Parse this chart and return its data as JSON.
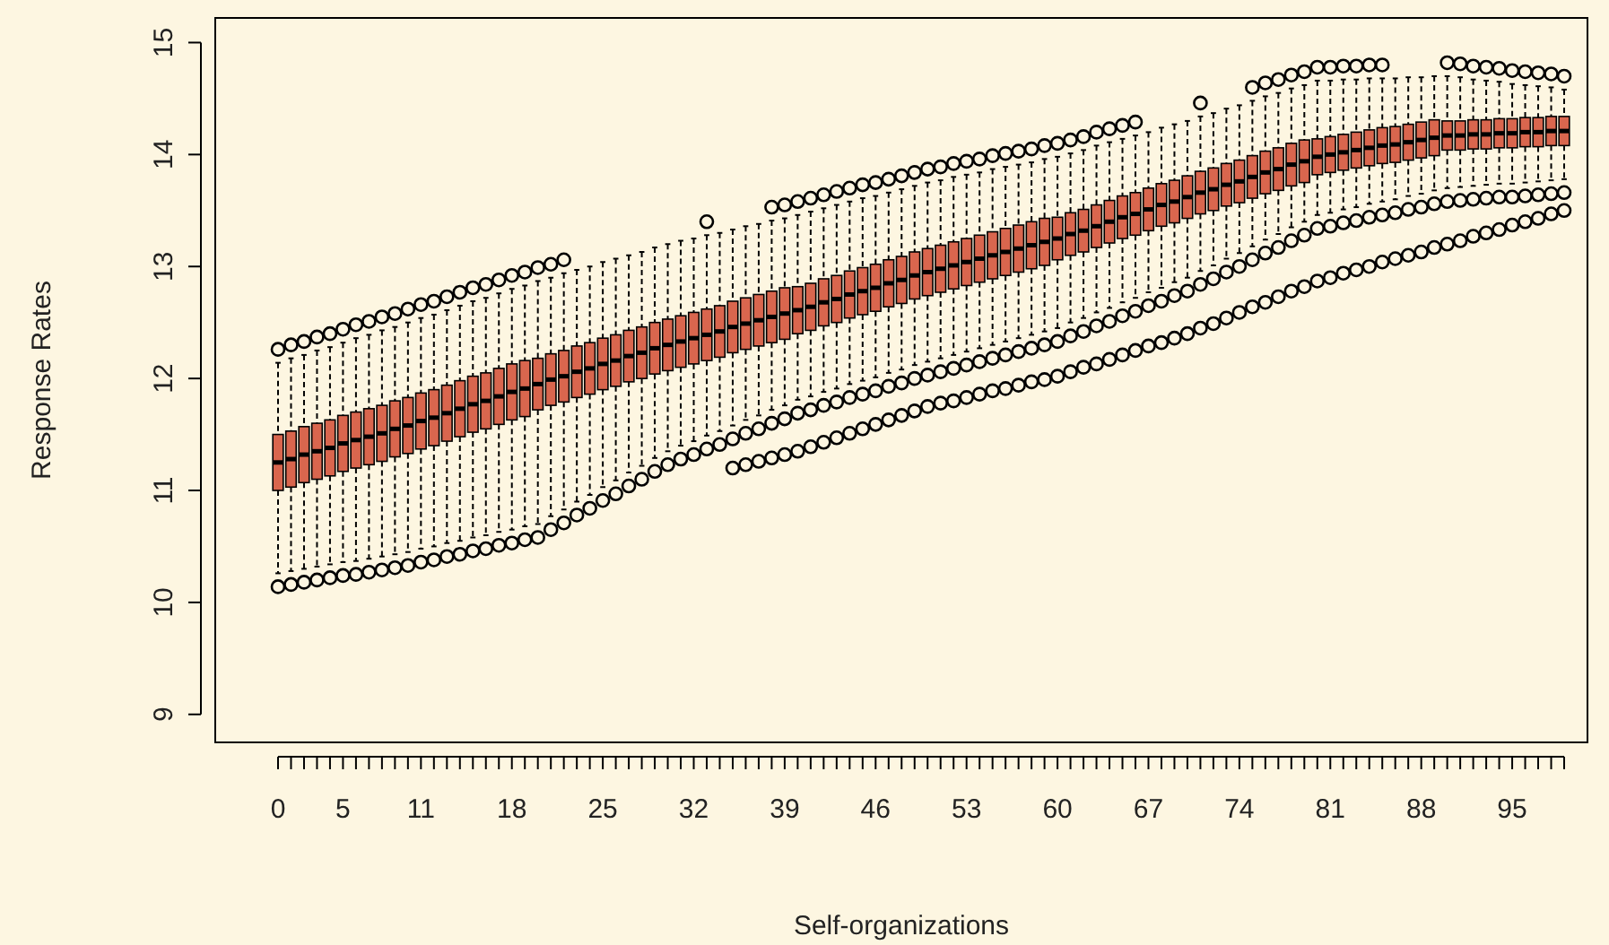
{
  "chart_data": {
    "type": "box",
    "xlabel": "Self-organizations",
    "ylabel": "Response Rates",
    "color": "#d9664e",
    "ylim": [
      8.75,
      15.22
    ],
    "yticks": [
      9,
      10,
      11,
      12,
      13,
      14,
      15
    ],
    "grid": false,
    "categories": [
      "0",
      null,
      null,
      null,
      null,
      "5",
      null,
      null,
      null,
      null,
      null,
      "11",
      null,
      null,
      null,
      null,
      null,
      null,
      "18",
      null,
      null,
      null,
      null,
      null,
      null,
      "25",
      null,
      null,
      null,
      null,
      null,
      null,
      "32",
      null,
      null,
      null,
      null,
      null,
      null,
      "39",
      null,
      null,
      null,
      null,
      null,
      null,
      "46",
      null,
      null,
      null,
      null,
      null,
      null,
      "53",
      null,
      null,
      null,
      null,
      null,
      null,
      "60",
      null,
      null,
      null,
      null,
      null,
      null,
      "67",
      null,
      null,
      null,
      null,
      null,
      null,
      "74",
      null,
      null,
      null,
      null,
      null,
      null,
      "81",
      null,
      null,
      null,
      null,
      null,
      null,
      "88",
      null,
      null,
      null,
      null,
      null,
      null,
      "95",
      null,
      null,
      null,
      null
    ],
    "boxes": [
      {
        "low": 10.26,
        "q1": 11.0,
        "median": 11.25,
        "q3": 11.5,
        "high": 12.14,
        "outliers": [
          10.14,
          12.26
        ]
      },
      {
        "low": 10.28,
        "q1": 11.03,
        "median": 11.28,
        "q3": 11.53,
        "high": 12.18,
        "outliers": [
          10.16,
          12.3
        ]
      },
      {
        "low": 10.3,
        "q1": 11.07,
        "median": 11.32,
        "q3": 11.57,
        "high": 12.21,
        "outliers": [
          10.18,
          12.33
        ]
      },
      {
        "low": 10.32,
        "q1": 11.1,
        "median": 11.35,
        "q3": 11.6,
        "high": 12.25,
        "outliers": [
          10.2,
          12.37
        ]
      },
      {
        "low": 10.34,
        "q1": 11.13,
        "median": 11.38,
        "q3": 11.63,
        "high": 12.28,
        "outliers": [
          10.22,
          12.4
        ]
      },
      {
        "low": 10.36,
        "q1": 11.17,
        "median": 11.42,
        "q3": 11.67,
        "high": 12.32,
        "outliers": [
          10.24,
          12.44
        ]
      },
      {
        "low": 10.37,
        "q1": 11.2,
        "median": 11.45,
        "q3": 11.7,
        "high": 12.36,
        "outliers": [
          10.25,
          12.48
        ]
      },
      {
        "low": 10.39,
        "q1": 11.23,
        "median": 11.48,
        "q3": 11.73,
        "high": 12.39,
        "outliers": [
          10.27,
          12.51
        ]
      },
      {
        "low": 10.41,
        "q1": 11.26,
        "median": 11.51,
        "q3": 11.76,
        "high": 12.43,
        "outliers": [
          10.29,
          12.55
        ]
      },
      {
        "low": 10.43,
        "q1": 11.3,
        "median": 11.55,
        "q3": 11.8,
        "high": 12.46,
        "outliers": [
          10.31,
          12.58
        ]
      },
      {
        "low": 10.45,
        "q1": 11.33,
        "median": 11.58,
        "q3": 11.83,
        "high": 12.5,
        "outliers": [
          10.33,
          12.62
        ]
      },
      {
        "low": 10.48,
        "q1": 11.37,
        "median": 11.62,
        "q3": 11.87,
        "high": 12.54,
        "outliers": [
          10.36,
          12.66
        ]
      },
      {
        "low": 10.5,
        "q1": 11.4,
        "median": 11.65,
        "q3": 11.9,
        "high": 12.57,
        "outliers": [
          10.38,
          12.69
        ]
      },
      {
        "low": 10.53,
        "q1": 11.44,
        "median": 11.69,
        "q3": 11.94,
        "high": 12.61,
        "outliers": [
          10.41,
          12.73
        ]
      },
      {
        "low": 10.55,
        "q1": 11.48,
        "median": 11.73,
        "q3": 11.98,
        "high": 12.65,
        "outliers": [
          10.43,
          12.77
        ]
      },
      {
        "low": 10.58,
        "q1": 11.52,
        "median": 11.77,
        "q3": 12.02,
        "high": 12.69,
        "outliers": [
          10.46,
          12.81
        ]
      },
      {
        "low": 10.6,
        "q1": 11.55,
        "median": 11.8,
        "q3": 12.05,
        "high": 12.72,
        "outliers": [
          10.48,
          12.84
        ]
      },
      {
        "low": 10.63,
        "q1": 11.59,
        "median": 11.84,
        "q3": 12.09,
        "high": 12.76,
        "outliers": [
          10.51,
          12.88
        ]
      },
      {
        "low": 10.65,
        "q1": 11.63,
        "median": 11.88,
        "q3": 12.13,
        "high": 12.8,
        "outliers": [
          10.53,
          12.92
        ]
      },
      {
        "low": 10.68,
        "q1": 11.66,
        "median": 11.91,
        "q3": 12.16,
        "high": 12.83,
        "outliers": [
          10.56,
          12.95
        ]
      },
      {
        "low": 10.7,
        "q1": 11.72,
        "median": 11.95,
        "q3": 12.18,
        "high": 12.87,
        "outliers": [
          10.58,
          12.99
        ]
      },
      {
        "low": 10.77,
        "q1": 11.76,
        "median": 11.99,
        "q3": 12.22,
        "high": 12.9,
        "outliers": [
          10.65,
          13.02
        ]
      },
      {
        "low": 10.83,
        "q1": 11.79,
        "median": 12.02,
        "q3": 12.25,
        "high": 12.94,
        "outliers": [
          10.71,
          13.06
        ]
      },
      {
        "low": 10.9,
        "q1": 11.83,
        "median": 12.06,
        "q3": 12.29,
        "high": 12.97,
        "outliers": [
          10.78
        ]
      },
      {
        "low": 10.96,
        "q1": 11.86,
        "median": 12.09,
        "q3": 12.32,
        "high": 13.0,
        "outliers": [
          10.84
        ]
      },
      {
        "low": 11.03,
        "q1": 11.9,
        "median": 12.13,
        "q3": 12.36,
        "high": 13.04,
        "outliers": [
          10.91
        ]
      },
      {
        "low": 11.09,
        "q1": 11.93,
        "median": 12.16,
        "q3": 12.39,
        "high": 13.07,
        "outliers": [
          10.97
        ]
      },
      {
        "low": 11.16,
        "q1": 11.97,
        "median": 12.2,
        "q3": 12.43,
        "high": 13.1,
        "outliers": [
          11.04
        ]
      },
      {
        "low": 11.22,
        "q1": 12.0,
        "median": 12.23,
        "q3": 12.46,
        "high": 13.13,
        "outliers": [
          11.1
        ]
      },
      {
        "low": 11.29,
        "q1": 12.04,
        "median": 12.27,
        "q3": 12.5,
        "high": 13.17,
        "outliers": [
          11.17
        ]
      },
      {
        "low": 11.35,
        "q1": 12.07,
        "median": 12.3,
        "q3": 12.53,
        "high": 13.2,
        "outliers": [
          11.23
        ]
      },
      {
        "low": 11.4,
        "q1": 12.1,
        "median": 12.33,
        "q3": 12.56,
        "high": 13.23,
        "outliers": [
          11.28
        ]
      },
      {
        "low": 11.44,
        "q1": 12.13,
        "median": 12.36,
        "q3": 12.59,
        "high": 13.25,
        "outliers": [
          11.32
        ]
      },
      {
        "low": 11.49,
        "q1": 12.16,
        "median": 12.39,
        "q3": 12.62,
        "high": 13.28,
        "outliers": [
          11.37,
          13.4
        ]
      },
      {
        "low": 11.53,
        "q1": 12.19,
        "median": 12.42,
        "q3": 12.65,
        "high": 13.3,
        "outliers": [
          11.41
        ]
      },
      {
        "low": 11.58,
        "q1": 12.23,
        "median": 12.46,
        "q3": 12.69,
        "high": 13.33,
        "outliers": [
          11.2,
          11.46
        ]
      },
      {
        "low": 11.63,
        "q1": 12.26,
        "median": 12.49,
        "q3": 12.72,
        "high": 13.36,
        "outliers": [
          11.23,
          11.51
        ]
      },
      {
        "low": 11.67,
        "q1": 12.29,
        "median": 12.52,
        "q3": 12.75,
        "high": 13.38,
        "outliers": [
          11.26,
          11.55
        ]
      },
      {
        "low": 11.72,
        "q1": 12.32,
        "median": 12.55,
        "q3": 12.78,
        "high": 13.41,
        "outliers": [
          11.29,
          11.6,
          13.53
        ]
      },
      {
        "low": 11.76,
        "q1": 12.35,
        "median": 12.58,
        "q3": 12.81,
        "high": 13.43,
        "outliers": [
          11.32,
          11.64,
          13.55
        ]
      },
      {
        "low": 11.81,
        "q1": 12.4,
        "median": 12.61,
        "q3": 12.82,
        "high": 13.46,
        "outliers": [
          11.35,
          11.69,
          13.58
        ]
      },
      {
        "low": 11.84,
        "q1": 12.43,
        "median": 12.64,
        "q3": 12.85,
        "high": 13.49,
        "outliers": [
          11.39,
          11.72,
          13.61
        ]
      },
      {
        "low": 11.88,
        "q1": 12.47,
        "median": 12.68,
        "q3": 12.89,
        "high": 13.52,
        "outliers": [
          11.43,
          11.76,
          13.64
        ]
      },
      {
        "low": 11.91,
        "q1": 12.5,
        "median": 12.71,
        "q3": 12.92,
        "high": 13.55,
        "outliers": [
          11.47,
          11.79,
          13.67
        ]
      },
      {
        "low": 11.95,
        "q1": 12.54,
        "median": 12.75,
        "q3": 12.96,
        "high": 13.58,
        "outliers": [
          11.51,
          11.83,
          13.7
        ]
      },
      {
        "low": 11.98,
        "q1": 12.57,
        "median": 12.78,
        "q3": 12.99,
        "high": 13.61,
        "outliers": [
          11.55,
          11.86,
          13.73
        ]
      },
      {
        "low": 12.01,
        "q1": 12.6,
        "median": 12.81,
        "q3": 13.02,
        "high": 13.63,
        "outliers": [
          11.59,
          11.89,
          13.75
        ]
      },
      {
        "low": 12.05,
        "q1": 12.64,
        "median": 12.85,
        "q3": 13.06,
        "high": 13.66,
        "outliers": [
          11.63,
          11.93,
          13.78
        ]
      },
      {
        "low": 12.08,
        "q1": 12.67,
        "median": 12.88,
        "q3": 13.09,
        "high": 13.69,
        "outliers": [
          11.67,
          11.96,
          13.81
        ]
      },
      {
        "low": 12.12,
        "q1": 12.71,
        "median": 12.92,
        "q3": 13.13,
        "high": 13.72,
        "outliers": [
          11.71,
          12.0,
          13.84
        ]
      },
      {
        "low": 12.15,
        "q1": 12.74,
        "median": 12.95,
        "q3": 13.16,
        "high": 13.75,
        "outliers": [
          11.75,
          12.03,
          13.87
        ]
      },
      {
        "low": 12.18,
        "q1": 12.77,
        "median": 12.98,
        "q3": 13.19,
        "high": 13.77,
        "outliers": [
          11.78,
          12.06,
          13.89
        ]
      },
      {
        "low": 12.21,
        "q1": 12.8,
        "median": 13.01,
        "q3": 13.22,
        "high": 13.8,
        "outliers": [
          11.8,
          12.09,
          13.92
        ]
      },
      {
        "low": 12.24,
        "q1": 12.83,
        "median": 13.04,
        "q3": 13.25,
        "high": 13.82,
        "outliers": [
          11.83,
          12.12,
          13.94
        ]
      },
      {
        "low": 12.27,
        "q1": 12.86,
        "median": 13.07,
        "q3": 13.28,
        "high": 13.84,
        "outliers": [
          11.86,
          12.15,
          13.96
        ]
      },
      {
        "low": 12.3,
        "q1": 12.89,
        "median": 13.1,
        "q3": 13.31,
        "high": 13.87,
        "outliers": [
          11.89,
          12.18,
          13.99
        ]
      },
      {
        "low": 12.33,
        "q1": 12.92,
        "median": 13.13,
        "q3": 13.34,
        "high": 13.89,
        "outliers": [
          11.91,
          12.21,
          14.01
        ]
      },
      {
        "low": 12.36,
        "q1": 12.95,
        "median": 13.16,
        "q3": 13.37,
        "high": 13.91,
        "outliers": [
          11.94,
          12.24,
          14.03
        ]
      },
      {
        "low": 12.39,
        "q1": 12.98,
        "median": 13.19,
        "q3": 13.4,
        "high": 13.93,
        "outliers": [
          11.97,
          12.27,
          14.05
        ]
      },
      {
        "low": 12.42,
        "q1": 13.01,
        "median": 13.22,
        "q3": 13.43,
        "high": 13.96,
        "outliers": [
          11.99,
          12.3,
          14.08
        ]
      },
      {
        "low": 12.45,
        "q1": 13.06,
        "median": 13.25,
        "q3": 13.44,
        "high": 13.98,
        "outliers": [
          12.02,
          12.33,
          14.1
        ]
      },
      {
        "low": 12.5,
        "q1": 13.1,
        "median": 13.29,
        "q3": 13.48,
        "high": 14.01,
        "outliers": [
          12.06,
          12.38,
          14.13
        ]
      },
      {
        "low": 12.54,
        "q1": 13.13,
        "median": 13.32,
        "q3": 13.51,
        "high": 14.04,
        "outliers": [
          12.1,
          12.42,
          14.16
        ]
      },
      {
        "low": 12.59,
        "q1": 13.17,
        "median": 13.36,
        "q3": 13.55,
        "high": 14.08,
        "outliers": [
          12.13,
          12.47,
          14.2
        ]
      },
      {
        "low": 12.63,
        "q1": 13.21,
        "median": 13.4,
        "q3": 13.59,
        "high": 14.11,
        "outliers": [
          12.17,
          12.51,
          14.23
        ]
      },
      {
        "low": 12.68,
        "q1": 13.25,
        "median": 13.44,
        "q3": 13.63,
        "high": 14.14,
        "outliers": [
          12.21,
          12.56,
          14.26
        ]
      },
      {
        "low": 12.72,
        "q1": 13.28,
        "median": 13.47,
        "q3": 13.66,
        "high": 14.17,
        "outliers": [
          12.25,
          12.6,
          14.29
        ]
      },
      {
        "low": 12.77,
        "q1": 13.32,
        "median": 13.51,
        "q3": 13.7,
        "high": 14.2,
        "outliers": [
          12.29,
          12.65
        ]
      },
      {
        "low": 12.81,
        "q1": 13.36,
        "median": 13.55,
        "q3": 13.74,
        "high": 14.24,
        "outliers": [
          12.32,
          12.69
        ]
      },
      {
        "low": 12.86,
        "q1": 13.39,
        "median": 13.58,
        "q3": 13.77,
        "high": 14.27,
        "outliers": [
          12.36,
          12.74
        ]
      },
      {
        "low": 12.9,
        "q1": 13.43,
        "median": 13.62,
        "q3": 13.81,
        "high": 14.3,
        "outliers": [
          12.4,
          12.78
        ]
      },
      {
        "low": 12.96,
        "q1": 13.47,
        "median": 13.66,
        "q3": 13.85,
        "high": 14.34,
        "outliers": [
          12.45,
          12.84,
          14.46
        ]
      },
      {
        "low": 13.01,
        "q1": 13.5,
        "median": 13.69,
        "q3": 13.88,
        "high": 14.37,
        "outliers": [
          12.49,
          12.89
        ]
      },
      {
        "low": 13.07,
        "q1": 13.54,
        "median": 13.73,
        "q3": 13.92,
        "high": 14.41,
        "outliers": [
          12.54,
          12.95
        ]
      },
      {
        "low": 13.12,
        "q1": 13.57,
        "median": 13.76,
        "q3": 13.95,
        "high": 14.44,
        "outliers": [
          12.59,
          13.0
        ]
      },
      {
        "low": 13.18,
        "q1": 13.61,
        "median": 13.8,
        "q3": 13.99,
        "high": 14.48,
        "outliers": [
          12.64,
          13.06,
          14.6
        ]
      },
      {
        "low": 13.24,
        "q1": 13.65,
        "median": 13.84,
        "q3": 14.03,
        "high": 14.52,
        "outliers": [
          12.68,
          13.12,
          14.64
        ]
      },
      {
        "low": 13.29,
        "q1": 13.68,
        "median": 13.87,
        "q3": 14.06,
        "high": 14.55,
        "outliers": [
          12.73,
          13.17,
          14.67
        ]
      },
      {
        "low": 13.35,
        "q1": 13.72,
        "median": 13.91,
        "q3": 14.1,
        "high": 14.59,
        "outliers": [
          12.78,
          13.23,
          14.71
        ]
      },
      {
        "low": 13.4,
        "q1": 13.75,
        "median": 13.94,
        "q3": 14.13,
        "high": 14.62,
        "outliers": [
          12.82,
          13.28,
          14.74
        ]
      },
      {
        "low": 13.46,
        "q1": 13.82,
        "median": 13.98,
        "q3": 14.14,
        "high": 14.66,
        "outliers": [
          12.87,
          13.34,
          14.78
        ]
      },
      {
        "low": 13.48,
        "q1": 13.84,
        "median": 14.0,
        "q3": 14.16,
        "high": 14.66,
        "outliers": [
          12.9,
          13.36,
          14.78
        ]
      },
      {
        "low": 13.51,
        "q1": 13.86,
        "median": 14.02,
        "q3": 14.18,
        "high": 14.67,
        "outliers": [
          12.94,
          13.39,
          14.79
        ]
      },
      {
        "low": 13.53,
        "q1": 13.88,
        "median": 14.04,
        "q3": 14.2,
        "high": 14.67,
        "outliers": [
          12.97,
          13.41,
          14.79
        ]
      },
      {
        "low": 13.56,
        "q1": 13.9,
        "median": 14.06,
        "q3": 14.22,
        "high": 14.68,
        "outliers": [
          13.0,
          13.44,
          14.8
        ]
      },
      {
        "low": 13.58,
        "q1": 13.92,
        "median": 14.08,
        "q3": 14.24,
        "high": 14.68,
        "outliers": [
          13.04,
          13.46,
          14.8
        ]
      },
      {
        "low": 13.6,
        "q1": 13.93,
        "median": 14.09,
        "q3": 14.25,
        "high": 14.68,
        "outliers": [
          13.07,
          13.48
        ]
      },
      {
        "low": 13.63,
        "q1": 13.95,
        "median": 14.11,
        "q3": 14.27,
        "high": 14.69,
        "outliers": [
          13.1,
          13.51
        ]
      },
      {
        "low": 13.65,
        "q1": 13.97,
        "median": 14.13,
        "q3": 14.29,
        "high": 14.69,
        "outliers": [
          13.13,
          13.53
        ]
      },
      {
        "low": 13.68,
        "q1": 13.99,
        "median": 14.15,
        "q3": 14.31,
        "high": 14.7,
        "outliers": [
          13.17,
          13.56
        ]
      },
      {
        "low": 13.7,
        "q1": 14.04,
        "median": 14.17,
        "q3": 14.3,
        "high": 14.7,
        "outliers": [
          13.2,
          13.58,
          14.82
        ]
      },
      {
        "low": 13.71,
        "q1": 14.04,
        "median": 14.17,
        "q3": 14.3,
        "high": 14.69,
        "outliers": [
          13.23,
          13.59,
          14.81
        ]
      },
      {
        "low": 13.72,
        "q1": 14.05,
        "median": 14.18,
        "q3": 14.31,
        "high": 14.67,
        "outliers": [
          13.27,
          13.6,
          14.79
        ]
      },
      {
        "low": 13.73,
        "q1": 14.05,
        "median": 14.18,
        "q3": 14.31,
        "high": 14.66,
        "outliers": [
          13.3,
          13.61,
          14.78
        ]
      },
      {
        "low": 13.74,
        "q1": 14.06,
        "median": 14.19,
        "q3": 14.32,
        "high": 14.65,
        "outliers": [
          13.33,
          13.62,
          14.77
        ]
      },
      {
        "low": 13.74,
        "q1": 14.06,
        "median": 14.19,
        "q3": 14.32,
        "high": 14.63,
        "outliers": [
          13.37,
          13.62,
          14.75
        ]
      },
      {
        "low": 13.75,
        "q1": 14.07,
        "median": 14.2,
        "q3": 14.33,
        "high": 14.62,
        "outliers": [
          13.4,
          13.63,
          14.74
        ]
      },
      {
        "low": 13.76,
        "q1": 14.07,
        "median": 14.2,
        "q3": 14.33,
        "high": 14.61,
        "outliers": [
          13.43,
          13.64,
          14.73
        ]
      },
      {
        "low": 13.77,
        "q1": 14.08,
        "median": 14.21,
        "q3": 14.34,
        "high": 14.6,
        "outliers": [
          13.47,
          13.65,
          14.72
        ]
      },
      {
        "low": 13.78,
        "q1": 14.08,
        "median": 14.21,
        "q3": 14.34,
        "high": 14.58,
        "outliers": [
          13.5,
          13.66,
          14.7
        ]
      }
    ]
  }
}
